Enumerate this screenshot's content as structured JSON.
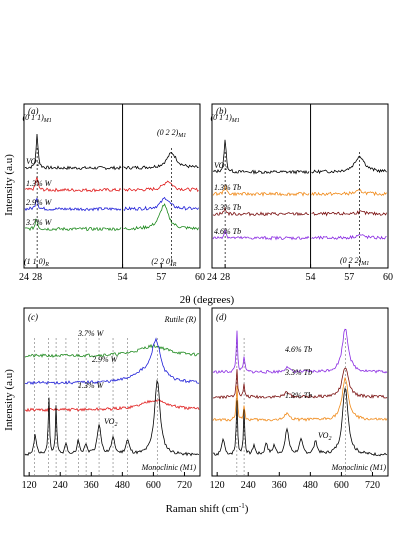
{
  "figure": {
    "xrd_ylabel": "Intensity (a.u)",
    "xrd_xlabel": "2θ (degrees)",
    "raman_ylabel": "Intensity (a.u)",
    "raman_xlabel": "Raman shift (cm",
    "raman_xlabel_sup": "-1",
    "raman_xlabel_end": ")"
  },
  "colors": {
    "vo2": "#000000",
    "w13": "#e01b1b",
    "w29": "#1f1fd8",
    "w37": "#1e8a1e",
    "tb13": "#f08a1a",
    "tb33": "#7a1010",
    "tb46": "#8a2be2",
    "axis": "#000000",
    "ref_line": "#777777"
  },
  "chart_data": [
    {
      "panel_label": "(a)",
      "type": "line",
      "xlabel": "2θ (degrees)",
      "ylabel": "Intensity (a.u)",
      "segments": [
        {
          "xlim": [
            24,
            54
          ],
          "xticks": [
            24,
            28
          ]
        },
        {
          "xlim": [
            54,
            60
          ],
          "xticks": [
            54,
            57,
            60
          ]
        }
      ],
      "peak_labels": [
        {
          "label": "(0 1 1)",
          "sub": "M1",
          "x": 28.0
        },
        {
          "label": "(0 2 2)",
          "sub": "M1",
          "x": 57.8
        },
        {
          "label": "(1 1 0)",
          "sub": "R",
          "x": 27.8
        },
        {
          "label": "(2 2 0)",
          "sub": "R",
          "x": 57.2
        }
      ],
      "series": [
        {
          "name": "VO2",
          "label": "VO",
          "sub": "2",
          "color": "#000000",
          "peaks": [
            {
              "x": 28.0,
              "h": 34,
              "w": 0.35
            },
            {
              "x": 57.8,
              "h": 15,
              "w": 0.45
            }
          ]
        },
        {
          "name": "1.3% W",
          "color": "#e01b1b",
          "peaks": [
            {
              "x": 27.9,
              "h": 14,
              "w": 0.35
            },
            {
              "x": 57.5,
              "h": 9,
              "w": 0.4
            }
          ]
        },
        {
          "name": "2.9% W",
          "color": "#1f1fd8",
          "peaks": [
            {
              "x": 27.85,
              "h": 13,
              "w": 0.35
            },
            {
              "x": 57.3,
              "h": 11,
              "w": 0.4
            }
          ]
        },
        {
          "name": "3.7% W",
          "color": "#1e8a1e",
          "peaks": [
            {
              "x": 27.8,
              "h": 12,
              "w": 0.35
            },
            {
              "x": 57.2,
              "h": 24,
              "w": 0.4
            }
          ]
        }
      ]
    },
    {
      "panel_label": "(b)",
      "type": "line",
      "xlabel": "2θ (degrees)",
      "segments": [
        {
          "xlim": [
            24,
            54
          ],
          "xticks": [
            24,
            28
          ]
        },
        {
          "xlim": [
            54,
            60
          ],
          "xticks": [
            54,
            57,
            60
          ]
        }
      ],
      "peak_labels": [
        {
          "label": "(0 1 1)",
          "sub": "M1",
          "x": 28.0
        },
        {
          "label": "(0 2 2)",
          "sub": "M1",
          "x": 57.8
        }
      ],
      "series": [
        {
          "name": "VO2",
          "label": "VO",
          "sub": "2",
          "color": "#000000",
          "peaks": [
            {
              "x": 28.0,
              "h": 34,
              "w": 0.35
            },
            {
              "x": 57.8,
              "h": 16,
              "w": 0.45
            }
          ]
        },
        {
          "name": "1.3% Tb",
          "color": "#f08a1a",
          "peaks": [
            {
              "x": 28.0,
              "h": 10,
              "w": 0.35
            },
            {
              "x": 57.8,
              "h": 3,
              "w": 0.4
            }
          ]
        },
        {
          "name": "3.3% Tb",
          "color": "#7a1010",
          "peaks": [
            {
              "x": 28.0,
              "h": 6,
              "w": 0.35
            },
            {
              "x": 57.8,
              "h": 2,
              "w": 0.4
            }
          ]
        },
        {
          "name": "4.6% Tb",
          "color": "#8a2be2",
          "peaks": [
            {
              "x": 28.0,
              "h": 9,
              "w": 0.35
            },
            {
              "x": 57.8,
              "h": 3,
              "w": 0.4
            }
          ]
        }
      ]
    },
    {
      "panel_label": "(c)",
      "type": "line",
      "xlabel": "Raman shift (cm-1)",
      "ylabel": "Intensity (a.u)",
      "xlim": [
        100,
        780
      ],
      "xticks": [
        120,
        240,
        360,
        480,
        600,
        720
      ],
      "annotations": [
        "Rutile (R)",
        "Monoclinic (M1)"
      ],
      "reference_lines": [
        140,
        194,
        224,
        262,
        310,
        340,
        390,
        444,
        500,
        615
      ],
      "series": [
        {
          "name": "3.7% W",
          "color": "#1e8a1e",
          "peaks": [
            {
              "x": 600,
              "h": 10,
              "w": 70
            }
          ]
        },
        {
          "name": "2.9% W",
          "color": "#1f1fd8",
          "peaks": [
            {
              "x": 610,
              "h": 40,
              "w": 22
            },
            {
              "x": 550,
              "h": 8,
              "w": 50
            }
          ]
        },
        {
          "name": "1.3% W",
          "color": "#e01b1b",
          "peaks": [
            {
              "x": 605,
              "h": 10,
              "w": 60
            }
          ]
        },
        {
          "name": "VO2",
          "label": "VO",
          "sub": "2",
          "color": "#000000",
          "peaks": [
            {
              "x": 143,
              "h": 20,
              "w": 6
            },
            {
              "x": 196,
              "h": 58,
              "w": 3
            },
            {
              "x": 224,
              "h": 48,
              "w": 3
            },
            {
              "x": 262,
              "h": 12,
              "w": 5
            },
            {
              "x": 310,
              "h": 14,
              "w": 6
            },
            {
              "x": 340,
              "h": 10,
              "w": 6
            },
            {
              "x": 390,
              "h": 30,
              "w": 8
            },
            {
              "x": 444,
              "h": 16,
              "w": 8
            },
            {
              "x": 500,
              "h": 14,
              "w": 8
            },
            {
              "x": 615,
              "h": 75,
              "w": 13
            }
          ]
        }
      ]
    },
    {
      "panel_label": "(d)",
      "type": "line",
      "xlabel": "Raman shift (cm-1)",
      "xlim": [
        100,
        780
      ],
      "xticks": [
        120,
        240,
        360,
        480,
        600,
        720
      ],
      "annotations": [
        "Monoclinic (M1)"
      ],
      "reference_lines": [
        196,
        224,
        615
      ],
      "series": [
        {
          "name": "4.6% Tb",
          "color": "#8a2be2",
          "peaks": [
            {
              "x": 196,
              "h": 42,
              "w": 3
            },
            {
              "x": 224,
              "h": 16,
              "w": 3
            },
            {
              "x": 390,
              "h": 6,
              "w": 8
            },
            {
              "x": 615,
              "h": 44,
              "w": 14
            }
          ]
        },
        {
          "name": "3.3% Tb",
          "color": "#7a1010",
          "peaks": [
            {
              "x": 196,
              "h": 30,
              "w": 3
            },
            {
              "x": 224,
              "h": 12,
              "w": 3
            },
            {
              "x": 390,
              "h": 6,
              "w": 8
            },
            {
              "x": 615,
              "h": 30,
              "w": 14
            }
          ]
        },
        {
          "name": "1.3% Tb",
          "color": "#f08a1a",
          "peaks": [
            {
              "x": 196,
              "h": 36,
              "w": 3
            },
            {
              "x": 224,
              "h": 14,
              "w": 3
            },
            {
              "x": 390,
              "h": 8,
              "w": 8
            },
            {
              "x": 615,
              "h": 42,
              "w": 14
            }
          ]
        },
        {
          "name": "VO2",
          "label": "VO",
          "sub": "2",
          "color": "#000000",
          "peaks": [
            {
              "x": 143,
              "h": 16,
              "w": 6
            },
            {
              "x": 196,
              "h": 55,
              "w": 3
            },
            {
              "x": 224,
              "h": 45,
              "w": 3
            },
            {
              "x": 262,
              "h": 10,
              "w": 5
            },
            {
              "x": 310,
              "h": 12,
              "w": 6
            },
            {
              "x": 340,
              "h": 9,
              "w": 6
            },
            {
              "x": 390,
              "h": 26,
              "w": 8
            },
            {
              "x": 444,
              "h": 14,
              "w": 8
            },
            {
              "x": 500,
              "h": 12,
              "w": 8
            },
            {
              "x": 615,
              "h": 68,
              "w": 13
            }
          ]
        }
      ]
    }
  ]
}
